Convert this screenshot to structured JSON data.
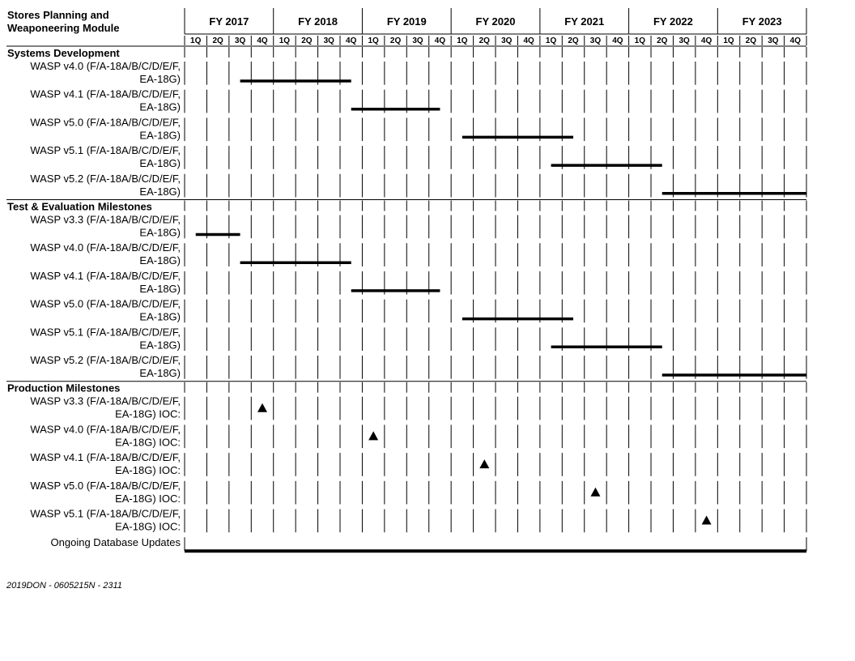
{
  "title_lines": [
    "Stores Planning and",
    "Weaponeering Module"
  ],
  "fiscal_years": [
    "FY 2017",
    "FY 2018",
    "FY 2019",
    "FY 2020",
    "FY 2021",
    "FY 2022",
    "FY 2023"
  ],
  "quarters": [
    "1Q",
    "2Q",
    "3Q",
    "4Q"
  ],
  "sections": [
    {
      "title": "Systems Development",
      "rows": [
        {
          "label": [
            "WASP v4.0 (F/A-18A/B/C/D/E/F,",
            "EA-18G)"
          ],
          "bar": {
            "start": "FY 2017 3Q",
            "end": "FY 2018 4Q"
          }
        },
        {
          "label": [
            "WASP v4.1 (F/A-18A/B/C/D/E/F,",
            "EA-18G)"
          ],
          "bar": {
            "start": "FY 2018 4Q",
            "end": "FY 2019 4Q"
          }
        },
        {
          "label": [
            "WASP v5.0 (F/A-18A/B/C/D/E/F,",
            "EA-18G)"
          ],
          "bar": {
            "start": "FY 2020 1Q",
            "end": "FY 2021 2Q"
          }
        },
        {
          "label": [
            "WASP v5.1 (F/A-18A/B/C/D/E/F,",
            "EA-18G)"
          ],
          "bar": {
            "start": "FY 2021 1Q",
            "end": "FY 2022 2Q"
          }
        },
        {
          "label": [
            "WASP v5.2 (F/A-18A/B/C/D/E/F,",
            "EA-18G)"
          ],
          "bar": {
            "start": "FY 2022 2Q",
            "end": "FY 2023 4Q"
          }
        }
      ]
    },
    {
      "title": "Test & Evaluation Milestones",
      "rows": [
        {
          "label": [
            "WASP v3.3 (F/A-18A/B/C/D/E/F,",
            "EA-18G)"
          ],
          "bar": {
            "start": "FY 2017 1Q",
            "end": "FY 2017 3Q"
          }
        },
        {
          "label": [
            "WASP v4.0 (F/A-18A/B/C/D/E/F,",
            "EA-18G)"
          ],
          "bar": {
            "start": "FY 2017 3Q",
            "end": "FY 2018 4Q"
          }
        },
        {
          "label": [
            "WASP v4.1 (F/A-18A/B/C/D/E/F,",
            "EA-18G)"
          ],
          "bar": {
            "start": "FY 2018 4Q",
            "end": "FY 2019 4Q"
          }
        },
        {
          "label": [
            "WASP v5.0 (F/A-18A/B/C/D/E/F,",
            "EA-18G)"
          ],
          "bar": {
            "start": "FY 2020 1Q",
            "end": "FY 2021 2Q"
          }
        },
        {
          "label": [
            "WASP v5.1 (F/A-18A/B/C/D/E/F,",
            "EA-18G)"
          ],
          "bar": {
            "start": "FY 2021 1Q",
            "end": "FY 2022 2Q"
          }
        },
        {
          "label": [
            "WASP v5.2 (F/A-18A/B/C/D/E/F,",
            "EA-18G)"
          ],
          "bar": {
            "start": "FY 2022 2Q",
            "end": "FY 2023 4Q"
          }
        }
      ]
    },
    {
      "title": "Production Milestones",
      "rows": [
        {
          "label": [
            "WASP v3.3 (F/A-18A/B/C/D/E/F,",
            "EA-18G) IOC:"
          ],
          "milestone": "FY 2017 4Q"
        },
        {
          "label": [
            "WASP v4.0 (F/A-18A/B/C/D/E/F,",
            "EA-18G) IOC:"
          ],
          "milestone": "FY 2019 1Q"
        },
        {
          "label": [
            "WASP v4.1 (F/A-18A/B/C/D/E/F,",
            "EA-18G) IOC:"
          ],
          "milestone": "FY 2020 2Q"
        },
        {
          "label": [
            "WASP v5.0 (F/A-18A/B/C/D/E/F,",
            "EA-18G) IOC:"
          ],
          "milestone": "FY 2021 3Q"
        },
        {
          "label": [
            "WASP v5.1 (F/A-18A/B/C/D/E/F,",
            "EA-18G) IOC:"
          ],
          "milestone": "FY 2022 4Q"
        }
      ]
    }
  ],
  "ongoing": {
    "label": "Ongoing Database Updates",
    "bar": {
      "start": "FY 2017 1Q",
      "end": "FY 2023 4Q"
    }
  },
  "footer": "2019DON - 0605215N - 2311",
  "colors": {
    "line": "#000000",
    "bar": "#000000",
    "background": "#ffffff"
  }
}
